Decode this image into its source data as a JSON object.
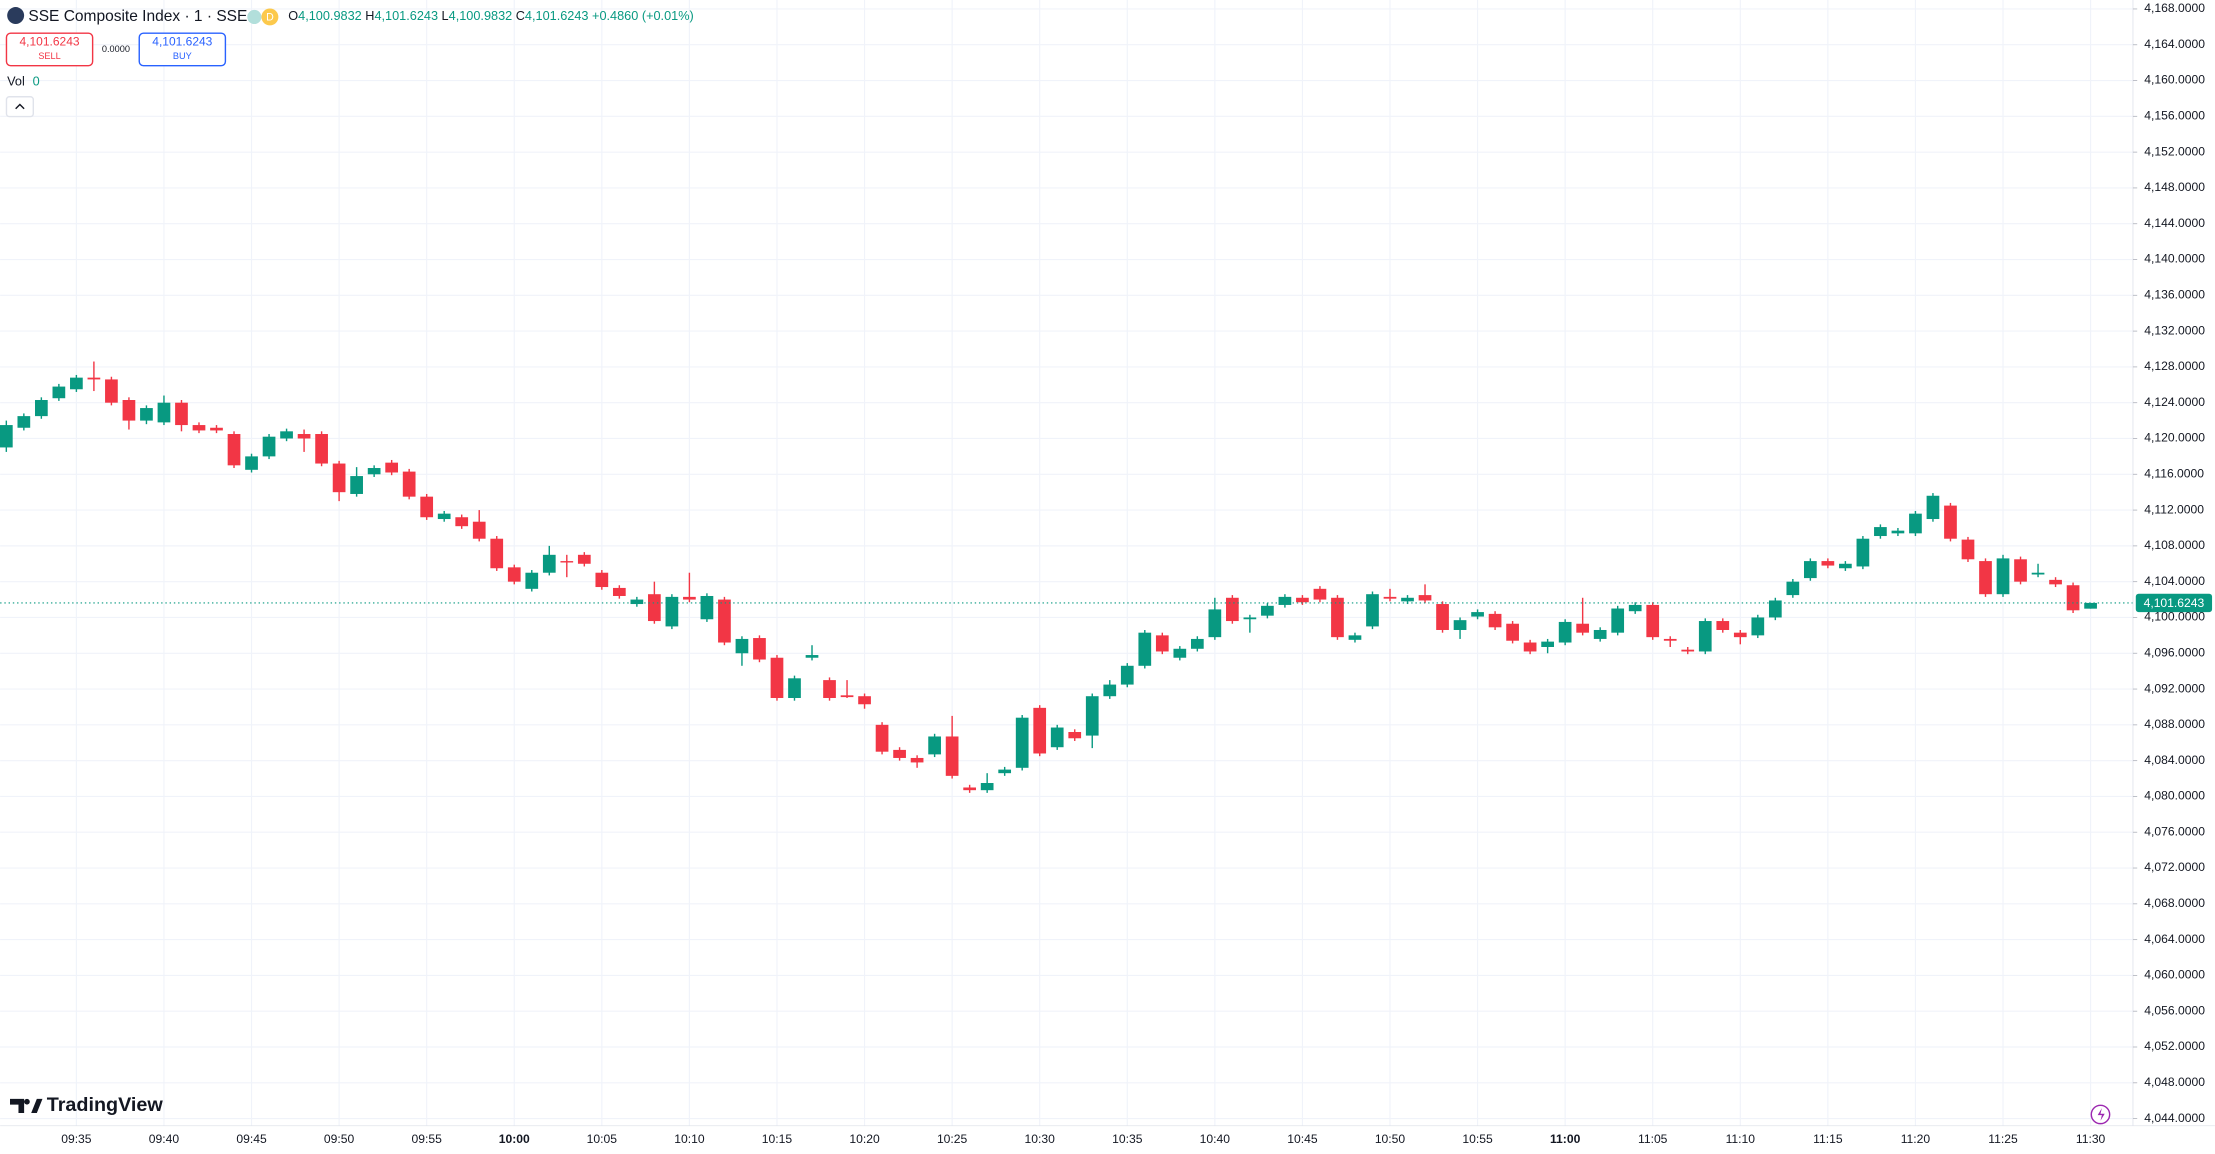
{
  "header": {
    "symbol": "SSE Composite Index · 1 · SSE",
    "badge": "D",
    "ohlc": [
      {
        "label": "O",
        "value": "4,100.9832"
      },
      {
        "label": "H",
        "value": "4,101.6243"
      },
      {
        "label": "L",
        "value": "4,100.9832"
      },
      {
        "label": "C",
        "value": "4,101.6243"
      }
    ],
    "change": "+0.4860 (+0.01%)",
    "sell_price": "4,101.6243",
    "sell": "SELL",
    "spread": "0.0000",
    "buy_price": "4,101.6243",
    "buy": "BUY",
    "vol_label": "Vol",
    "vol_value": "0",
    "price_label": "4,101.6243",
    "logo": "TradingView"
  },
  "chart_data": {
    "type": "candlestick",
    "grid": true,
    "up_color": "#089981",
    "down_color": "#f23645",
    "x": [
      "09:31",
      "09:32",
      "09:33",
      "09:34",
      "09:35",
      "09:36",
      "09:37",
      "09:38",
      "09:39",
      "09:40",
      "09:41",
      "09:42",
      "09:43",
      "09:44",
      "09:45",
      "09:46",
      "09:47",
      "09:48",
      "09:49",
      "09:50",
      "09:51",
      "09:52",
      "09:53",
      "09:54",
      "09:55",
      "09:56",
      "09:57",
      "09:58",
      "09:59",
      "10:00",
      "10:01",
      "10:02",
      "10:03",
      "10:04",
      "10:05",
      "10:06",
      "10:07",
      "10:08",
      "10:09",
      "10:10",
      "10:11",
      "10:12",
      "10:13",
      "10:14",
      "10:15",
      "10:16",
      "10:17",
      "10:18",
      "10:19",
      "10:20",
      "10:21",
      "10:22",
      "10:23",
      "10:24",
      "10:25",
      "10:26",
      "10:27",
      "10:28",
      "10:29",
      "10:30",
      "10:31",
      "10:32",
      "10:33",
      "10:34",
      "10:35",
      "10:36",
      "10:37",
      "10:38",
      "10:39",
      "10:40",
      "10:41",
      "10:42",
      "10:43",
      "10:44",
      "10:45",
      "10:46",
      "10:47",
      "10:48",
      "10:49",
      "10:50",
      "10:51",
      "10:52",
      "10:53",
      "10:54",
      "10:55",
      "10:56",
      "10:57",
      "10:58",
      "10:59",
      "11:00",
      "11:01",
      "11:02",
      "11:03",
      "11:04",
      "11:05",
      "11:06",
      "11:07",
      "11:08",
      "11:09",
      "11:10",
      "11:11",
      "11:12",
      "11:13",
      "11:14",
      "11:15",
      "11:16",
      "11:17",
      "11:18",
      "11:19",
      "11:20",
      "11:21",
      "11:22",
      "11:23",
      "11:24",
      "11:25",
      "11:26",
      "11:27",
      "11:28",
      "11:29",
      "11:30"
    ],
    "open": [
      4119.0,
      4121.2,
      4122.5,
      4124.5,
      4125.5,
      4126.8,
      4126.6,
      4124.3,
      4122.0,
      4121.8,
      4124.0,
      4121.5,
      4121.2,
      4120.5,
      4116.5,
      4118.0,
      4120.0,
      4120.5,
      4120.5,
      4117.2,
      4113.8,
      4116.0,
      4117.3,
      4116.3,
      4113.5,
      4111.0,
      4111.2,
      4110.7,
      4108.8,
      4105.6,
      4103.2,
      4105.0,
      4106.3,
      4107.0,
      4105.0,
      4103.3,
      4101.5,
      4102.6,
      4099.0,
      4102.3,
      4099.8,
      4102.0,
      4096.0,
      4097.7,
      4095.5,
      4091.0,
      4095.5,
      4093.0,
      4091.3,
      4091.2,
      4088.0,
      4085.2,
      4084.3,
      4084.7,
      4086.7,
      4081.0,
      4080.7,
      4082.6,
      4083.2,
      4089.9,
      4085.5,
      4087.2,
      4086.8,
      4091.2,
      4092.5,
      4094.6,
      4098.0,
      4095.5,
      4096.5,
      4097.8,
      4102.2,
      4099.8,
      4100.2,
      4101.4,
      4102.2,
      4103.2,
      4102.2,
      4097.5,
      4099.0,
      4102.3,
      4101.8,
      4102.5,
      4101.5,
      4098.6,
      4100.1,
      4100.4,
      4099.3,
      4097.2,
      4096.7,
      4097.2,
      4099.3,
      4097.6,
      4098.3,
      4100.7,
      4101.4,
      4097.6,
      4096.4,
      4096.2,
      4099.6,
      4098.3,
      4098.0,
      4100.0,
      4102.5,
      4104.4,
      4106.3,
      4105.5,
      4105.7,
      4109.1,
      4109.4,
      4109.4,
      4111.0,
      4112.5,
      4108.7,
      4106.3,
      4102.6,
      4106.5,
      4104.8,
      4104.2,
      4103.6,
      4100.9832
    ],
    "high": [
      4122.0,
      4122.8,
      4124.6,
      4126.1,
      4127.1,
      4128.6,
      4126.9,
      4124.6,
      4123.7,
      4124.8,
      4124.3,
      4121.8,
      4121.5,
      4120.8,
      4118.3,
      4120.5,
      4121.1,
      4121.0,
      4120.8,
      4117.5,
      4116.8,
      4117.0,
      4117.6,
      4116.6,
      4113.8,
      4111.9,
      4111.5,
      4112.0,
      4109.1,
      4105.9,
      4105.3,
      4108.0,
      4107.0,
      4107.3,
      4105.3,
      4103.6,
      4102.3,
      4104.0,
      4102.6,
      4105.0,
      4102.7,
      4102.3,
      4097.9,
      4098.0,
      4095.8,
      4093.5,
      4096.9,
      4093.3,
      4093.0,
      4091.5,
      4088.3,
      4085.5,
      4084.6,
      4087.0,
      4089.0,
      4081.3,
      4082.6,
      4083.3,
      4089.1,
      4090.2,
      4088.0,
      4087.5,
      4091.5,
      4093.0,
      4094.9,
      4098.6,
      4098.3,
      4096.8,
      4097.9,
      4102.2,
      4102.5,
      4100.3,
      4101.6,
      4102.6,
      4102.5,
      4103.5,
      4102.5,
      4098.3,
      4102.9,
      4103.2,
      4102.5,
      4103.7,
      4101.8,
      4100.0,
      4100.9,
      4100.7,
      4099.6,
      4097.5,
      4097.6,
      4099.8,
      4102.2,
      4098.9,
      4101.3,
      4101.7,
      4101.7,
      4097.9,
      4096.7,
      4099.9,
      4099.9,
      4098.6,
      4100.3,
      4102.2,
      4104.3,
      4106.6,
      4106.6,
      4106.3,
      4109.1,
      4110.4,
      4110.0,
      4111.9,
      4113.9,
      4112.8,
      4109.0,
      4106.6,
      4107.0,
      4106.8,
      4106.0,
      4104.5,
      4103.9,
      4101.6243
    ],
    "low": [
      4118.5,
      4120.9,
      4122.2,
      4124.2,
      4125.2,
      4125.3,
      4123.7,
      4121.0,
      4121.6,
      4121.5,
      4120.8,
      4120.6,
      4120.6,
      4116.7,
      4116.2,
      4117.7,
      4119.7,
      4118.5,
      4116.9,
      4113.0,
      4113.5,
      4115.7,
      4115.9,
      4113.2,
      4110.9,
      4110.7,
      4109.9,
      4108.5,
      4105.2,
      4103.7,
      4102.9,
      4104.7,
      4104.5,
      4105.7,
      4103.1,
      4102.1,
      4101.2,
      4099.3,
      4098.7,
      4101.7,
      4099.5,
      4096.9,
      4094.6,
      4095.0,
      4090.7,
      4090.7,
      4095.2,
      4090.7,
      4091.0,
      4089.8,
      4084.7,
      4084.0,
      4083.2,
      4084.4,
      4082.0,
      4080.4,
      4080.4,
      4082.3,
      4082.9,
      4084.5,
      4085.2,
      4086.2,
      4085.4,
      4090.9,
      4092.2,
      4094.3,
      4095.9,
      4095.2,
      4096.2,
      4097.5,
      4099.3,
      4098.3,
      4099.9,
      4101.1,
      4101.4,
      4101.7,
      4097.5,
      4097.2,
      4098.7,
      4101.8,
      4101.5,
      4101.6,
      4098.3,
      4097.6,
      4099.8,
      4098.6,
      4097.1,
      4095.9,
      4096.0,
      4096.9,
      4098.0,
      4097.3,
      4098.0,
      4100.4,
      4097.5,
      4096.7,
      4095.9,
      4095.9,
      4098.3,
      4097.0,
      4097.7,
      4099.7,
      4102.2,
      4104.1,
      4105.5,
      4105.2,
      4105.4,
      4108.8,
      4109.1,
      4109.1,
      4110.7,
      4108.5,
      4106.2,
      4102.3,
      4102.3,
      4103.7,
      4104.5,
      4103.4,
      4100.5,
      4100.9832
    ],
    "close": [
      4121.5,
      4122.5,
      4124.3,
      4125.8,
      4126.8,
      4126.6,
      4124.0,
      4122.0,
      4123.4,
      4124.0,
      4121.5,
      4120.9,
      4120.9,
      4117.0,
      4118.0,
      4120.2,
      4120.8,
      4120.0,
      4117.2,
      4114.0,
      4115.8,
      4116.7,
      4116.2,
      4113.5,
      4111.2,
      4111.6,
      4110.2,
      4108.8,
      4105.5,
      4104.0,
      4105.0,
      4107.0,
      4106.2,
      4106.0,
      4103.4,
      4102.4,
      4102.0,
      4099.6,
      4102.3,
      4102.0,
      4102.4,
      4097.2,
      4097.6,
      4095.3,
      4091.0,
      4093.2,
      4095.8,
      4091.0,
      4091.1,
      4090.3,
      4085.0,
      4084.3,
      4083.8,
      4086.7,
      4082.3,
      4080.7,
      4081.5,
      4083.0,
      4088.8,
      4084.8,
      4087.7,
      4086.5,
      4091.2,
      4092.5,
      4094.6,
      4098.3,
      4096.2,
      4096.5,
      4097.6,
      4100.9,
      4099.6,
      4100.0,
      4101.3,
      4102.3,
      4101.7,
      4102.0,
      4097.8,
      4098.0,
      4102.6,
      4102.1,
      4102.2,
      4101.9,
      4098.6,
      4099.7,
      4100.6,
      4098.9,
      4097.4,
      4096.2,
      4097.3,
      4099.5,
      4098.3,
      4098.6,
      4101.0,
      4101.4,
      4097.8,
      4097.4,
      4096.2,
      4099.6,
      4098.6,
      4097.8,
      4100.0,
      4101.9,
      4104.0,
      4106.3,
      4105.8,
      4106.0,
      4108.8,
      4110.1,
      4109.7,
      4111.6,
      4113.6,
      4108.8,
      4106.5,
      4102.6,
      4106.6,
      4104.0,
      4105.0,
      4103.7,
      4100.8,
      4101.6243
    ],
    "ylim": [
      4043.2,
      4169.0
    ],
    "yticks": [
      {
        "value": 4044,
        "label": "4,044.0000"
      },
      {
        "value": 4048,
        "label": "4,048.0000"
      },
      {
        "value": 4052,
        "label": "4,052.0000"
      },
      {
        "value": 4056,
        "label": "4,056.0000"
      },
      {
        "value": 4060,
        "label": "4,060.0000"
      },
      {
        "value": 4064,
        "label": "4,064.0000"
      },
      {
        "value": 4068,
        "label": "4,068.0000"
      },
      {
        "value": 4072,
        "label": "4,072.0000"
      },
      {
        "value": 4076,
        "label": "4,076.0000"
      },
      {
        "value": 4080,
        "label": "4,080.0000"
      },
      {
        "value": 4084,
        "label": "4,084.0000"
      },
      {
        "value": 4088,
        "label": "4,088.0000"
      },
      {
        "value": 4092,
        "label": "4,092.0000"
      },
      {
        "value": 4096,
        "label": "4,096.0000"
      },
      {
        "value": 4100,
        "label": "4,100.0000"
      },
      {
        "value": 4104,
        "label": "4,104.0000"
      },
      {
        "value": 4108,
        "label": "4,108.0000"
      },
      {
        "value": 4112,
        "label": "4,112.0000"
      },
      {
        "value": 4116,
        "label": "4,116.0000"
      },
      {
        "value": 4120,
        "label": "4,120.0000"
      },
      {
        "value": 4124,
        "label": "4,124.0000"
      },
      {
        "value": 4128,
        "label": "4,128.0000"
      },
      {
        "value": 4132,
        "label": "4,132.0000"
      },
      {
        "value": 4136,
        "label": "4,136.0000"
      },
      {
        "value": 4140,
        "label": "4,140.0000"
      },
      {
        "value": 4144,
        "label": "4,144.0000"
      },
      {
        "value": 4148,
        "label": "4,148.0000"
      },
      {
        "value": 4152,
        "label": "4,152.0000"
      },
      {
        "value": 4156,
        "label": "4,156.0000"
      },
      {
        "value": 4160,
        "label": "4,160.0000"
      },
      {
        "value": 4164,
        "label": "4,164.0000"
      },
      {
        "value": 4168,
        "label": "4,168.0000"
      }
    ],
    "xticks": [
      "09:35",
      "09:40",
      "09:45",
      "09:50",
      "09:55",
      "10:00",
      "10:05",
      "10:10",
      "10:15",
      "10:20",
      "10:25",
      "10:30",
      "10:35",
      "10:40",
      "10:45",
      "10:50",
      "10:55",
      "11:00",
      "11:05",
      "11:10",
      "11:15",
      "11:20",
      "11:25",
      "11:30"
    ]
  }
}
